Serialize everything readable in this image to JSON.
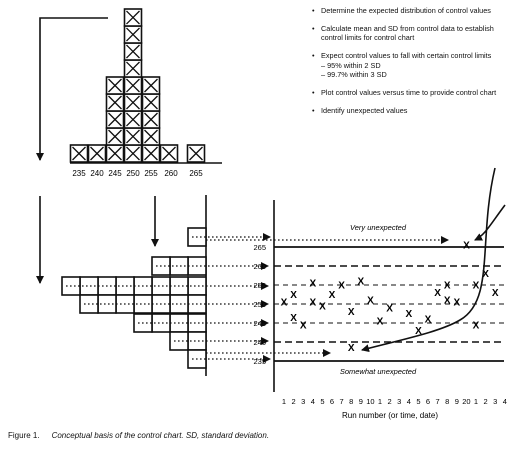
{
  "histogram": {
    "tick_labels": [
      "235",
      "240",
      "245",
      "250",
      "255",
      "260",
      "265"
    ],
    "bins": [
      {
        "value": 237.5,
        "count": 1
      },
      {
        "value": 242.5,
        "count": 1
      },
      {
        "value": 247.5,
        "count": 5
      },
      {
        "value": 252.5,
        "count": 9
      },
      {
        "value": 257.5,
        "count": 5
      },
      {
        "value": 262.5,
        "count": 1
      },
      {
        "value": 267.5,
        "count": 1
      }
    ]
  },
  "side_histogram": {
    "row_counts": [
      1,
      3,
      8,
      7,
      4,
      2,
      1
    ]
  },
  "bullets": [
    {
      "text": "Determine the expected distribution of control values"
    },
    {
      "text": "Calculate mean and SD from control data to establish control limits for control chart"
    },
    {
      "text": "Expect control values to fall with certain control limits",
      "sub": [
        "– 95% within 2 SD",
        "– 99.7% within 3 SD"
      ]
    },
    {
      "text": "Plot control values versus time to provide control chart"
    },
    {
      "text": "Identify unexpected values"
    }
  ],
  "control_chart": {
    "y_tick_labels": [
      "265",
      "260",
      "255",
      "250",
      "245",
      "240",
      "235"
    ],
    "x_tick_labels": [
      "1",
      "2",
      "3",
      "4",
      "5",
      "6",
      "7",
      "8",
      "9",
      "10",
      "1",
      "2",
      "3",
      "4",
      "5",
      "6",
      "7",
      "8",
      "9",
      "20",
      "1",
      "2",
      "3",
      "4"
    ],
    "x_axis_label": "Run number (or time, date)",
    "annotation_top": "Very unexpected",
    "annotation_bottom": "Somewhat unexpected",
    "point_marker": "X",
    "points": [
      {
        "run": 1,
        "value": 250.5
      },
      {
        "run": 2,
        "value": 246.5
      },
      {
        "run": 2,
        "value": 252.5
      },
      {
        "run": 3,
        "value": 244.5
      },
      {
        "run": 4,
        "value": 250.5
      },
      {
        "run": 4,
        "value": 255.5
      },
      {
        "run": 5,
        "value": 249.5
      },
      {
        "run": 6,
        "value": 252.5
      },
      {
        "run": 7,
        "value": 255.0
      },
      {
        "run": 8,
        "value": 248.0
      },
      {
        "run": 9,
        "value": 256.0
      },
      {
        "run": 10,
        "value": 251.0
      },
      {
        "run": 11,
        "value": 245.5
      },
      {
        "run": 12,
        "value": 249.0
      },
      {
        "run": 14,
        "value": 247.5
      },
      {
        "run": 15,
        "value": 243.0
      },
      {
        "run": 16,
        "value": 246.0
      },
      {
        "run": 17,
        "value": 253.0
      },
      {
        "run": 18,
        "value": 251.0
      },
      {
        "run": 18,
        "value": 255.0
      },
      {
        "run": 19,
        "value": 250.5
      },
      {
        "run": 20,
        "value": 265.5
      },
      {
        "run": 21,
        "value": 255.0
      },
      {
        "run": 21,
        "value": 244.5
      },
      {
        "run": 22,
        "value": 258.0
      },
      {
        "run": 23,
        "value": 253.0
      },
      {
        "run": 8,
        "value": 238.5
      }
    ]
  },
  "caption": {
    "label": "Figure 1.",
    "text": "Conceptual basis of the control chart. SD, standard deviation."
  }
}
